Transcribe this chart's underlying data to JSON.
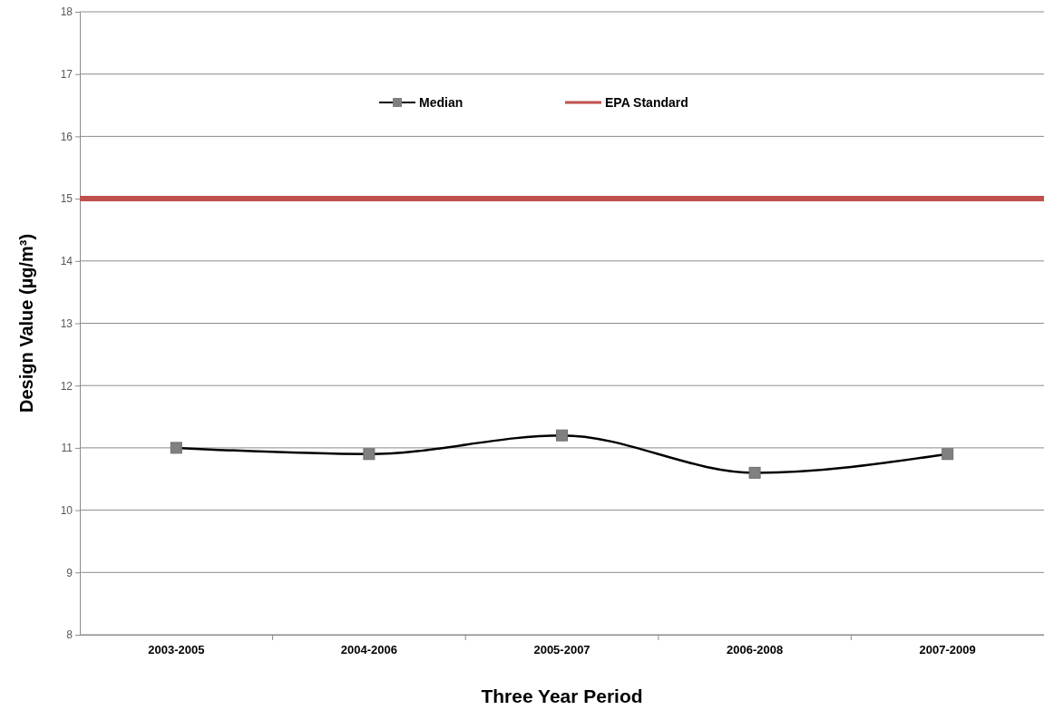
{
  "chart_data": {
    "type": "line",
    "xlabel": "Three Year Period",
    "ylabel": "Design Value (µg/m³)",
    "categories": [
      "2003-2005",
      "2004-2006",
      "2005-2007",
      "2006-2008",
      "2007-2009"
    ],
    "series": [
      {
        "name": "Median",
        "color": "#000000",
        "values": [
          11.0,
          10.9,
          11.2,
          10.6,
          10.9
        ]
      }
    ],
    "ylim": [
      8,
      18
    ],
    "yticks": [
      8,
      9,
      10,
      11,
      12,
      13,
      14,
      15,
      16,
      17,
      18
    ],
    "grid": "y",
    "legend": "top",
    "marker": "square",
    "line_style": "solid",
    "ref_lines": [
      {
        "axis": "y",
        "value": 15,
        "label": "EPA Standard",
        "color": "#c0504d"
      }
    ]
  }
}
